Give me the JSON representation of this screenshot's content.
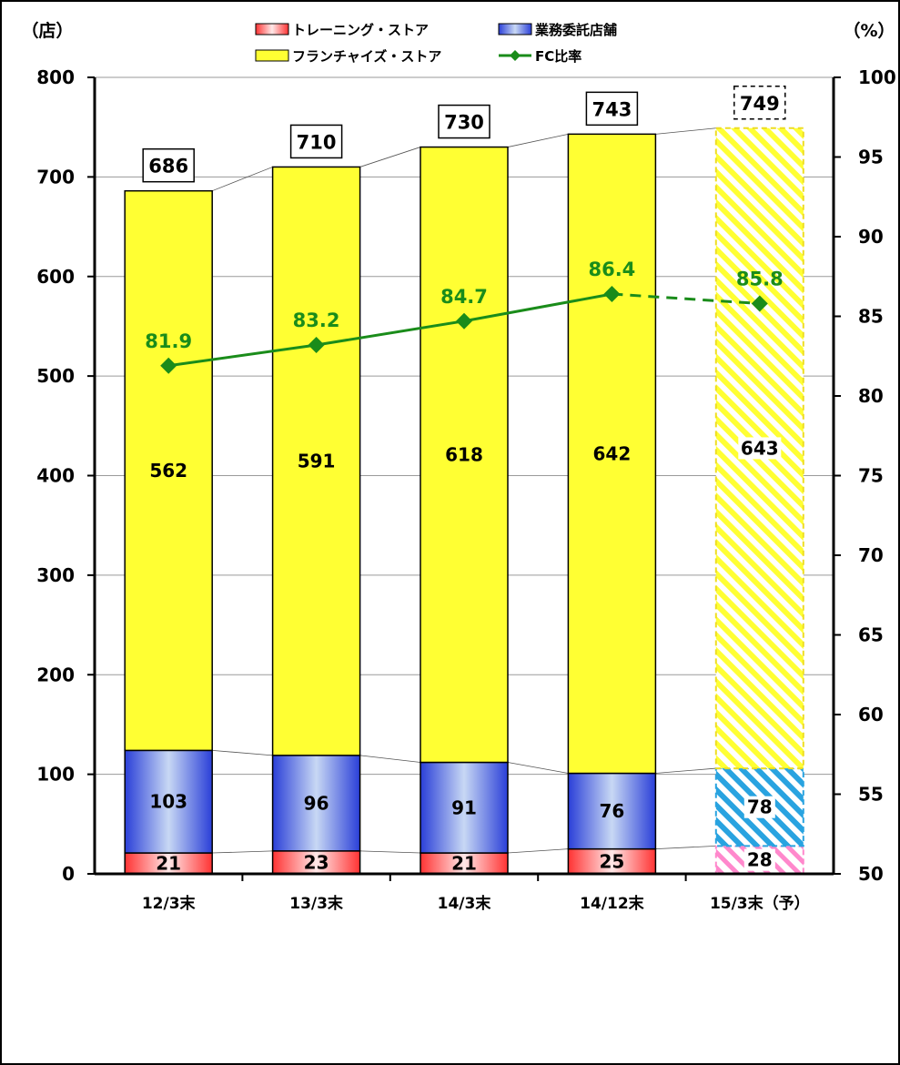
{
  "chart_data": {
    "type": "bar",
    "categories": [
      "12/3末",
      "13/3末",
      "14/3末",
      "14/12末",
      "15/3末（予）"
    ],
    "series": [
      {
        "name": "トレーニング・ストア",
        "values": [
          21,
          23,
          21,
          25,
          28
        ],
        "color": "#ff3333"
      },
      {
        "name": "業務委託店舗",
        "values": [
          103,
          96,
          91,
          76,
          78
        ],
        "color": "#2a3fd8"
      },
      {
        "name": "フランチャイズ・ストア",
        "values": [
          562,
          591,
          618,
          642,
          643
        ],
        "color": "#ffff33"
      }
    ],
    "line_series": {
      "name": "FC比率",
      "values": [
        81.9,
        83.2,
        84.7,
        86.4,
        85.8
      ],
      "color": "#1a8c1a"
    },
    "totals": [
      686,
      710,
      730,
      743,
      749
    ],
    "forecast_index": 4,
    "y_left": {
      "unit": "（店）",
      "ylim": [
        0,
        800
      ],
      "ticks": [
        0,
        100,
        200,
        300,
        400,
        500,
        600,
        700,
        800
      ]
    },
    "y_right": {
      "unit": "（%）",
      "ylim": [
        50,
        100
      ],
      "ticks": [
        50,
        55,
        60,
        65,
        70,
        75,
        80,
        85,
        90,
        95,
        100
      ]
    },
    "grid": true,
    "legend_position": "top"
  }
}
